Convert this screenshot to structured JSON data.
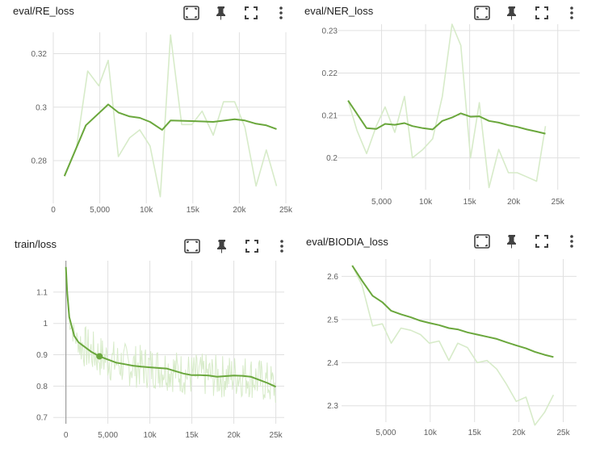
{
  "accent_color": "#6aa73c",
  "raw_color": "#d7ebc9",
  "toolbar_icons": [
    "fullscreen-icon",
    "pin-icon",
    "fit-domain-icon",
    "more-vert-icon"
  ],
  "chart_data": [
    {
      "type": "line",
      "title": "eval/RE_loss",
      "x_ticks": [
        "0",
        "5,000",
        "10k",
        "15k",
        "20k",
        "25k"
      ],
      "y_ticks": [
        "0.28",
        "0.3",
        "0.32"
      ],
      "xlim": [
        0,
        25000
      ],
      "ylim": [
        0.264,
        0.328
      ],
      "grid": true,
      "series": [
        {
          "values": [
            [
              1200,
              0.2745
            ],
            [
              2500,
              0.285
            ],
            [
              3700,
              0.3135
            ],
            [
              4900,
              0.308
            ],
            [
              5900,
              0.3175
            ],
            [
              7000,
              0.2815
            ],
            [
              8200,
              0.2885
            ],
            [
              9300,
              0.2915
            ],
            [
              10400,
              0.2855
            ],
            [
              11500,
              0.2665
            ],
            [
              12600,
              0.327
            ],
            [
              13800,
              0.2935
            ],
            [
              14900,
              0.2935
            ],
            [
              16000,
              0.2985
            ],
            [
              17200,
              0.2895
            ],
            [
              18300,
              0.302
            ],
            [
              19500,
              0.302
            ],
            [
              20600,
              0.2925
            ],
            [
              21800,
              0.2705
            ],
            [
              22900,
              0.284
            ],
            [
              24000,
              0.2705
            ]
          ]
        },
        {
          "values": [
            [
              1200,
              0.2742
            ],
            [
              3500,
              0.2932
            ],
            [
              5900,
              0.301
            ],
            [
              7000,
              0.298
            ],
            [
              8200,
              0.2965
            ],
            [
              9300,
              0.296
            ],
            [
              10400,
              0.2945
            ],
            [
              11700,
              0.2915
            ],
            [
              12600,
              0.295
            ],
            [
              14900,
              0.2948
            ],
            [
              17200,
              0.2945
            ],
            [
              19500,
              0.2955
            ],
            [
              20600,
              0.295
            ],
            [
              21800,
              0.2938
            ],
            [
              22900,
              0.2932
            ],
            [
              24000,
              0.2918
            ]
          ]
        }
      ]
    },
    {
      "type": "line",
      "title": "eval/NER_loss",
      "x_ticks": [
        "5,000",
        "10k",
        "15k",
        "20k",
        "25k"
      ],
      "y_ticks": [
        "0.2",
        "0.21",
        "0.22",
        "0.23"
      ],
      "xlim": [
        0,
        27500
      ],
      "ylim": [
        0.1925,
        0.2315
      ],
      "grid": true,
      "series": [
        {
          "values": [
            [
              1200,
              0.2135
            ],
            [
              2200,
              0.2065
            ],
            [
              3300,
              0.201
            ],
            [
              4400,
              0.2075
            ],
            [
              5400,
              0.212
            ],
            [
              6500,
              0.206
            ],
            [
              7600,
              0.2145
            ],
            [
              8500,
              0.2
            ],
            [
              9700,
              0.202
            ],
            [
              10800,
              0.2045
            ],
            [
              11900,
              0.2145
            ],
            [
              13000,
              0.2315
            ],
            [
              14000,
              0.2265
            ],
            [
              15100,
              0.2
            ],
            [
              16100,
              0.213
            ],
            [
              17200,
              0.193
            ],
            [
              18300,
              0.202
            ],
            [
              19400,
              0.1965
            ],
            [
              20400,
              0.1965
            ],
            [
              21500,
              0.1955
            ],
            [
              22600,
              0.1945
            ],
            [
              23600,
              0.2075
            ]
          ]
        },
        {
          "values": [
            [
              1200,
              0.2135
            ],
            [
              3300,
              0.207
            ],
            [
              4400,
              0.2068
            ],
            [
              5400,
              0.208
            ],
            [
              6500,
              0.2078
            ],
            [
              7600,
              0.2082
            ],
            [
              8500,
              0.2075
            ],
            [
              9700,
              0.207
            ],
            [
              10800,
              0.2067
            ],
            [
              11900,
              0.2087
            ],
            [
              13000,
              0.2095
            ],
            [
              14000,
              0.2105
            ],
            [
              15100,
              0.2097
            ],
            [
              16100,
              0.2098
            ],
            [
              17200,
              0.2087
            ],
            [
              18300,
              0.2083
            ],
            [
              19400,
              0.2077
            ],
            [
              20400,
              0.2073
            ],
            [
              21500,
              0.2067
            ],
            [
              22600,
              0.2062
            ],
            [
              23600,
              0.2057
            ]
          ]
        }
      ]
    },
    {
      "type": "line",
      "title": "train/loss",
      "x_ticks": [
        "0",
        "5,000",
        "10k",
        "15k",
        "20k",
        "25k"
      ],
      "y_ticks": [
        "0.7",
        "0.8",
        "0.9",
        "1",
        "1.1"
      ],
      "xlim": [
        -1500,
        26000
      ],
      "ylim": [
        0.68,
        1.2
      ],
      "grid": true,
      "series": [
        {
          "values": [
            [
              0,
              1.18
            ],
            [
              150,
              1.1
            ],
            [
              400,
              1.02
            ],
            [
              700,
              0.99
            ],
            [
              1000,
              0.96
            ],
            [
              1500,
              0.94
            ],
            [
              2000,
              0.93
            ],
            [
              3000,
              0.91
            ],
            [
              4000,
              0.895
            ],
            [
              5000,
              0.885
            ],
            [
              6000,
              0.875
            ],
            [
              7000,
              0.87
            ],
            [
              8000,
              0.865
            ],
            [
              9000,
              0.862
            ],
            [
              10000,
              0.86
            ],
            [
              11000,
              0.858
            ],
            [
              12000,
              0.856
            ],
            [
              13000,
              0.848
            ],
            [
              14000,
              0.84
            ],
            [
              15000,
              0.835
            ],
            [
              16000,
              0.835
            ],
            [
              17000,
              0.834
            ],
            [
              18000,
              0.83
            ],
            [
              19000,
              0.832
            ],
            [
              20000,
              0.834
            ],
            [
              21000,
              0.833
            ],
            [
              22000,
              0.83
            ],
            [
              23000,
              0.82
            ],
            [
              24000,
              0.81
            ],
            [
              25000,
              0.798
            ]
          ]
        }
      ],
      "marker": {
        "x": 4000,
        "y": 0.895
      }
    },
    {
      "type": "line",
      "title": "eval/BIODIA_loss",
      "x_ticks": [
        "5,000",
        "10k",
        "15k",
        "20k",
        "25k"
      ],
      "y_ticks": [
        "2.3",
        "2.4",
        "2.5",
        "2.6"
      ],
      "xlim": [
        0,
        26500
      ],
      "ylim": [
        2.262,
        2.64
      ],
      "grid": true,
      "series": [
        {
          "values": [
            [
              1200,
              2.625
            ],
            [
              2300,
              2.58
            ],
            [
              3500,
              2.485
            ],
            [
              4600,
              2.49
            ],
            [
              5600,
              2.445
            ],
            [
              6700,
              2.48
            ],
            [
              7800,
              2.475
            ],
            [
              8900,
              2.465
            ],
            [
              9900,
              2.445
            ],
            [
              11000,
              2.45
            ],
            [
              12100,
              2.405
            ],
            [
              13100,
              2.445
            ],
            [
              14200,
              2.435
            ],
            [
              15300,
              2.4
            ],
            [
              16400,
              2.405
            ],
            [
              17500,
              2.385
            ],
            [
              18600,
              2.35
            ],
            [
              19700,
              2.31
            ],
            [
              20800,
              2.32
            ],
            [
              21800,
              2.255
            ],
            [
              22900,
              2.285
            ],
            [
              23900,
              2.325
            ]
          ]
        },
        {
          "values": [
            [
              1200,
              2.625
            ],
            [
              2300,
              2.59
            ],
            [
              3500,
              2.555
            ],
            [
              4600,
              2.54
            ],
            [
              5600,
              2.52
            ],
            [
              6700,
              2.512
            ],
            [
              7800,
              2.505
            ],
            [
              8900,
              2.497
            ],
            [
              9900,
              2.492
            ],
            [
              11000,
              2.487
            ],
            [
              12100,
              2.48
            ],
            [
              13100,
              2.477
            ],
            [
              14200,
              2.47
            ],
            [
              15300,
              2.465
            ],
            [
              16400,
              2.46
            ],
            [
              17500,
              2.455
            ],
            [
              18600,
              2.447
            ],
            [
              19700,
              2.44
            ],
            [
              20800,
              2.433
            ],
            [
              21800,
              2.425
            ],
            [
              22900,
              2.418
            ],
            [
              23900,
              2.413
            ]
          ]
        }
      ]
    }
  ]
}
